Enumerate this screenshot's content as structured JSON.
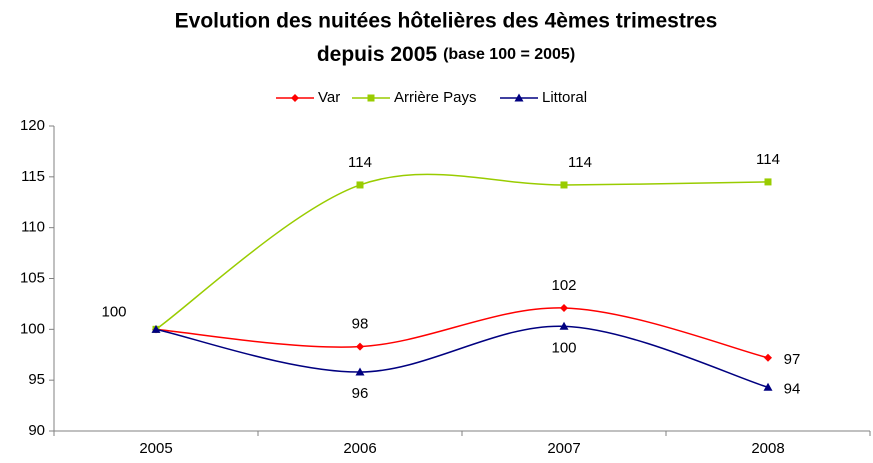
{
  "chart_data": {
    "type": "line",
    "title": "Evolution des nuitées hôtelières des 4èmes trimestres",
    "title_line2": "depuis 2005",
    "subtitle": "(base 100 = 2005)",
    "categories": [
      "2005",
      "2006",
      "2007",
      "2008"
    ],
    "series": [
      {
        "name": "Var",
        "color": "#ff0000",
        "marker": "diamond",
        "values": [
          100,
          98.3,
          102.1,
          97.2
        ],
        "value_labels": [
          "100",
          "98",
          "102",
          "97"
        ]
      },
      {
        "name": "Arrière Pays",
        "color": "#99cc00",
        "marker": "square",
        "values": [
          100,
          114.2,
          114.2,
          114.5
        ],
        "value_labels": [
          null,
          "114",
          "114",
          "114"
        ]
      },
      {
        "name": "Littoral",
        "color": "#000080",
        "marker": "triangle",
        "values": [
          100,
          95.8,
          100.3,
          94.3
        ],
        "value_labels": [
          null,
          "96",
          "100",
          "94"
        ]
      }
    ],
    "ylim": [
      90,
      120
    ],
    "yticks": [
      90,
      95,
      100,
      105,
      110,
      115,
      120
    ],
    "legend": "top",
    "grid": false
  }
}
